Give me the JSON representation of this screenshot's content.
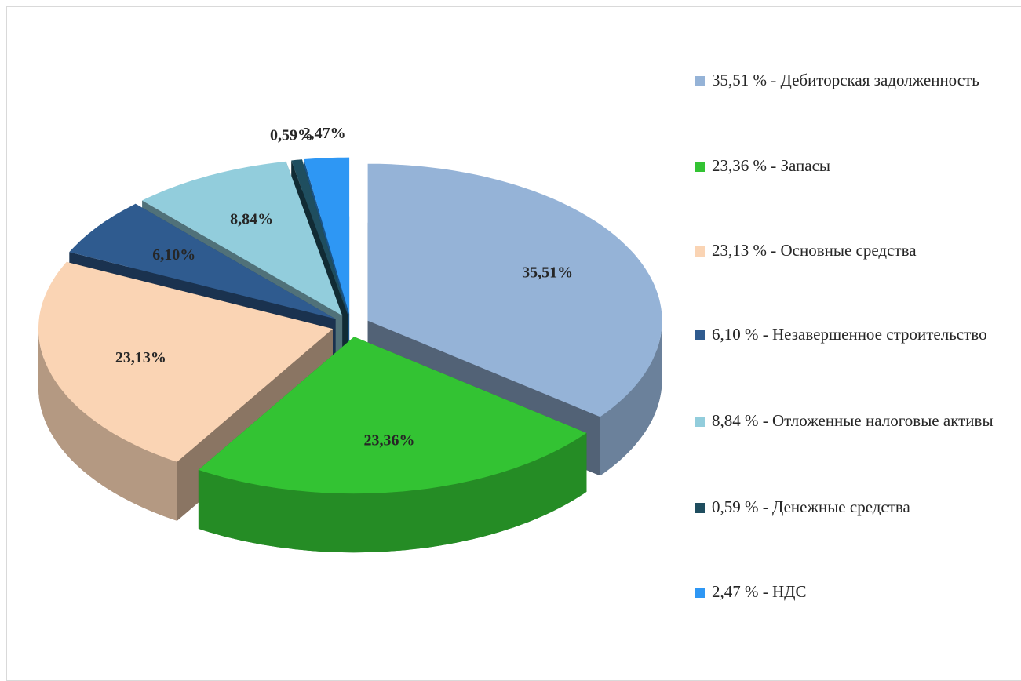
{
  "chart_data": {
    "type": "pie3d",
    "categories": [
      "35,51 % - Дебиторская задолженность",
      "23,36 % - Запасы",
      "23,13 % - Основные средства",
      "6,10 % - Незавершенное строительство",
      "8,84 % - Отложенные налоговые активы",
      "0,59 % - Денежные средства",
      "2,47 % - НДС"
    ],
    "values": [
      35.51,
      23.36,
      23.13,
      6.1,
      8.84,
      0.59,
      2.47
    ],
    "value_labels": [
      "35,51%",
      "23,36%",
      "23,13%",
      "6,10%",
      "8,84%",
      "0,59%",
      "2,47%"
    ],
    "colors": [
      "#95b3d7",
      "#33c333",
      "#fad4b4",
      "#2f5b8f",
      "#92cddc",
      "#1f4e5f",
      "#2e97f4"
    ],
    "legend": "right"
  }
}
